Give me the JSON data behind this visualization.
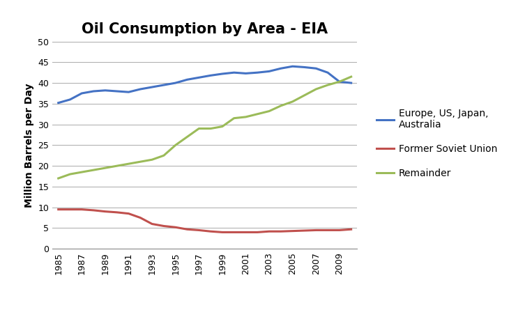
{
  "title": "Oil Consumption by Area - EIA",
  "ylabel": "Million Barrels per Day",
  "xlabel": "",
  "years": [
    1985,
    1986,
    1987,
    1988,
    1989,
    1990,
    1991,
    1992,
    1993,
    1994,
    1995,
    1996,
    1997,
    1998,
    1999,
    2000,
    2001,
    2002,
    2003,
    2004,
    2005,
    2006,
    2007,
    2008,
    2009,
    2010
  ],
  "europe_us_japan_aus": [
    35.2,
    36.0,
    37.5,
    38.0,
    38.2,
    38.0,
    37.8,
    38.5,
    39.0,
    39.5,
    40.0,
    40.8,
    41.3,
    41.8,
    42.2,
    42.5,
    42.3,
    42.5,
    42.8,
    43.5,
    44.0,
    43.8,
    43.5,
    42.5,
    40.3,
    40.0
  ],
  "former_soviet_union": [
    9.5,
    9.5,
    9.5,
    9.3,
    9.0,
    8.8,
    8.5,
    7.5,
    6.0,
    5.5,
    5.2,
    4.7,
    4.5,
    4.2,
    4.0,
    4.0,
    4.0,
    4.0,
    4.2,
    4.2,
    4.3,
    4.4,
    4.5,
    4.5,
    4.5,
    4.7
  ],
  "remainder": [
    17.0,
    18.0,
    18.5,
    19.0,
    19.5,
    20.0,
    20.5,
    21.0,
    21.5,
    22.5,
    25.0,
    27.0,
    29.0,
    29.0,
    29.5,
    31.5,
    31.8,
    32.5,
    33.2,
    34.5,
    35.5,
    37.0,
    38.5,
    39.5,
    40.3,
    41.5
  ],
  "line_colors": {
    "europe": "#4472C4",
    "fsu": "#C0504D",
    "remainder": "#9BBB59"
  },
  "legend_labels": [
    "Europe, US, Japan,\nAustralia",
    "Former Soviet Union",
    "Remainder"
  ],
  "ylim": [
    0,
    50
  ],
  "yticks": [
    0,
    5,
    10,
    15,
    20,
    25,
    30,
    35,
    40,
    45,
    50
  ],
  "xtick_years": [
    1985,
    1987,
    1989,
    1991,
    1993,
    1995,
    1997,
    1999,
    2001,
    2003,
    2005,
    2007,
    2009
  ],
  "background_color": "#ffffff",
  "title_fontsize": 15,
  "axis_fontsize": 10,
  "tick_fontsize": 9,
  "legend_fontsize": 10,
  "line_width": 2.2
}
